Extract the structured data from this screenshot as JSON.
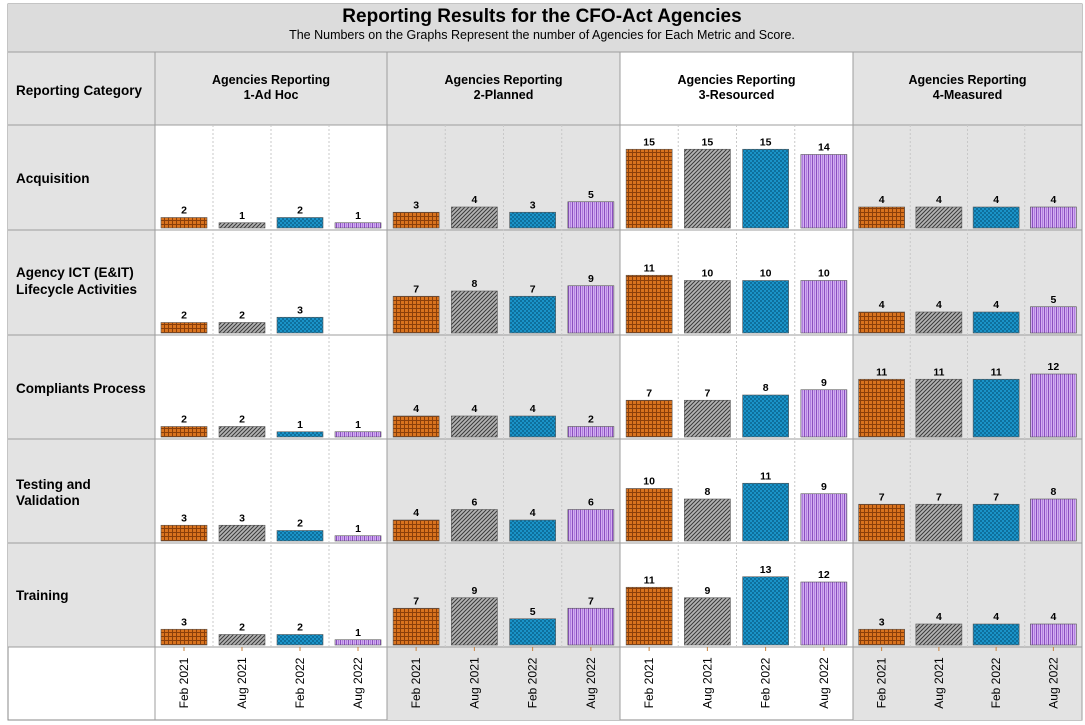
{
  "chart_data": {
    "type": "bar",
    "title": "Reporting Results for the CFO-Act Agencies",
    "subtitle": "The Numbers on the Graphs Represent the number of Agencies for Each Metric and Score.",
    "row_header": "Reporting Category",
    "groups": [
      {
        "line1": "Agencies Reporting",
        "line2": "1-Ad Hoc"
      },
      {
        "line1": "Agencies Reporting",
        "line2": "2-Planned"
      },
      {
        "line1": "Agencies Reporting",
        "line2": "3-Resourced"
      },
      {
        "line1": "Agencies Reporting",
        "line2": "4-Measured"
      }
    ],
    "periods": [
      "Feb 2021",
      "Aug 2021",
      "Feb 2022",
      "Aug 2022"
    ],
    "ylim": [
      0,
      16
    ],
    "categories": [
      {
        "label_lines": [
          "Acquisition"
        ],
        "values": [
          [
            2,
            1,
            2,
            1
          ],
          [
            3,
            4,
            3,
            5
          ],
          [
            15,
            15,
            15,
            14
          ],
          [
            4,
            4,
            4,
            4
          ]
        ]
      },
      {
        "label_lines": [
          "Agency ICT (E&IT)",
          "Lifecycle Activities"
        ],
        "values": [
          [
            2,
            2,
            3,
            null
          ],
          [
            7,
            8,
            7,
            9
          ],
          [
            11,
            10,
            10,
            10
          ],
          [
            4,
            4,
            4,
            5
          ]
        ]
      },
      {
        "label_lines": [
          "Compliants Process"
        ],
        "values": [
          [
            2,
            2,
            1,
            1
          ],
          [
            4,
            4,
            4,
            2
          ],
          [
            7,
            7,
            8,
            9
          ],
          [
            11,
            11,
            11,
            12
          ]
        ]
      },
      {
        "label_lines": [
          "Testing and",
          "Validation"
        ],
        "values": [
          [
            3,
            3,
            2,
            1
          ],
          [
            4,
            6,
            4,
            6
          ],
          [
            10,
            8,
            11,
            9
          ],
          [
            7,
            7,
            7,
            8
          ]
        ]
      },
      {
        "label_lines": [
          "Training"
        ],
        "values": [
          [
            3,
            2,
            2,
            1
          ],
          [
            7,
            9,
            5,
            7
          ],
          [
            11,
            9,
            13,
            12
          ],
          [
            3,
            4,
            4,
            4
          ]
        ]
      }
    ]
  },
  "colors": {
    "Feb 2021": "#d9731e",
    "Aug 2021": "#9a9a9a",
    "Feb 2022": "#1a93c8",
    "Aug 2022": "#c18ee0",
    "shaded_panel": "#e3e3e3",
    "header_band": "#dcdcdc",
    "grid": "#9e9e9e"
  }
}
